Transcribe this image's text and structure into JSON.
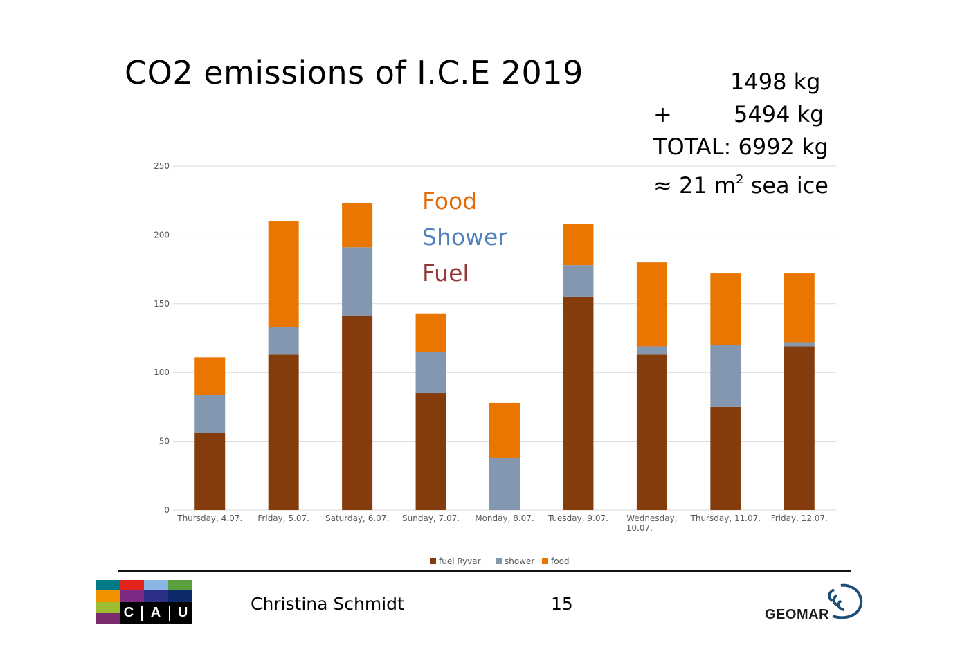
{
  "slide": {
    "title": "CO2 emissions of I.C.E 2019",
    "author": "Christina Schmidt",
    "page_number": "15"
  },
  "totals": {
    "line1": "1498 kg",
    "line2_op": "+",
    "line2_val": "5494 kg",
    "line3": "TOTAL: 6992 kg",
    "line4_prefix": "≈ 21 m",
    "line4_sup": "2",
    "line4_suffix": " sea ice"
  },
  "overlay_legend": {
    "food": "Food",
    "shower": "Shower",
    "fuel": "Fuel"
  },
  "colors": {
    "fuel": "#843c0c",
    "shower": "#8497b0",
    "food": "#e97600",
    "overlay_food": "#e36c09",
    "overlay_shower": "#4f81bd",
    "overlay_fuel": "#953735",
    "grid": "#d9d9d9",
    "tick_text": "#595959"
  },
  "logos": {
    "cau_letters": [
      "C",
      "A",
      "U"
    ],
    "geomar": "GEOMAR"
  },
  "chart_data": {
    "type": "bar",
    "stacked": true,
    "title": "",
    "xlabel": "",
    "ylabel": "",
    "ylim": [
      0,
      250
    ],
    "yticks": [
      0,
      50,
      100,
      150,
      200,
      250
    ],
    "grid": true,
    "legend_position": "bottom",
    "categories": [
      [
        "Thursday, 4.07."
      ],
      [
        "Friday, 5.07."
      ],
      [
        "Saturday, 6.07."
      ],
      [
        "Sunday, 7.07."
      ],
      [
        "Monday, 8.07."
      ],
      [
        "Tuesday, 9.07."
      ],
      [
        "Wednesday,",
        "10.07."
      ],
      [
        "Thursday, 11.07."
      ],
      [
        "Friday, 12.07."
      ]
    ],
    "series": [
      {
        "name": "fuel Ryvar",
        "key": "fuel",
        "values": [
          56,
          113,
          141,
          85,
          0,
          155,
          113,
          75,
          119
        ]
      },
      {
        "name": "shower",
        "key": "shower",
        "values": [
          28,
          20,
          50,
          30,
          38,
          23,
          6,
          45,
          3
        ]
      },
      {
        "name": "food",
        "key": "food",
        "values": [
          27,
          77,
          32,
          28,
          40,
          30,
          61,
          52,
          50
        ]
      }
    ]
  }
}
